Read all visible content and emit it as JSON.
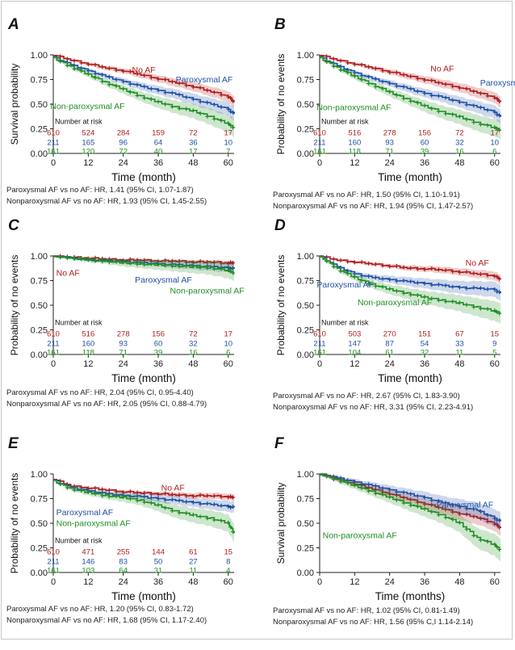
{
  "colors": {
    "noaf": "#b01c1c",
    "parox": "#1f4fa5",
    "nonparox": "#1f8f22",
    "axis": "#222222"
  },
  "chart_data": [
    {
      "panel": "A",
      "type": "line",
      "ylabel": "Survival probability",
      "xlabel": "Time (month)",
      "xlim": [
        0,
        62
      ],
      "ylim": [
        0,
        1
      ],
      "xticks": [
        "0",
        "12",
        "24",
        "36",
        "48",
        "60"
      ],
      "yticks": [
        "0.00",
        "0.25",
        "0.50",
        "0.75",
        "1.00"
      ],
      "series": [
        {
          "name": "No AF",
          "color": "noaf",
          "x": [
            0,
            6,
            12,
            18,
            24,
            30,
            36,
            42,
            48,
            54,
            60,
            62
          ],
          "y": [
            1.0,
            0.95,
            0.91,
            0.87,
            0.84,
            0.8,
            0.76,
            0.72,
            0.68,
            0.63,
            0.58,
            0.52
          ],
          "band": 0.05
        },
        {
          "name": "Paroxysmal AF",
          "color": "parox",
          "x": [
            0,
            6,
            12,
            18,
            24,
            30,
            36,
            42,
            48,
            54,
            60,
            62
          ],
          "y": [
            0.98,
            0.9,
            0.84,
            0.78,
            0.73,
            0.68,
            0.64,
            0.6,
            0.55,
            0.5,
            0.45,
            0.4
          ],
          "band": 0.06
        },
        {
          "name": "Non-paroxysmal AF",
          "color": "nonparox",
          "x": [
            0,
            6,
            12,
            18,
            24,
            30,
            36,
            42,
            48,
            54,
            60,
            62
          ],
          "y": [
            0.97,
            0.88,
            0.8,
            0.72,
            0.65,
            0.58,
            0.52,
            0.47,
            0.43,
            0.37,
            0.3,
            0.26
          ],
          "band": 0.08
        }
      ],
      "labels": [
        {
          "text": "No AF",
          "color": "noaf",
          "x": 27,
          "y": 0.82
        },
        {
          "text": "Paroxysmal AF",
          "color": "parox",
          "x": 42,
          "y": 0.72
        },
        {
          "text": "Non-paroxysmal AF",
          "color": "nonparox",
          "x": -1,
          "y": 0.45
        }
      ],
      "risk": {
        "title": "Number at risk",
        "rows": [
          {
            "color": "noaf",
            "values": [
              "610",
              "524",
              "284",
              "159",
              "72",
              "17"
            ]
          },
          {
            "color": "parox",
            "values": [
              "211",
              "165",
              "96",
              "64",
              "36",
              "10"
            ]
          },
          {
            "color": "nonparox",
            "values": [
              "161",
              "120",
              "72",
              "40",
              "17",
              "7"
            ]
          }
        ]
      },
      "hr": [
        "Paroxysmal AF vs no AF: HR, 1.41 (95% CI, 1.07-1.87)",
        "Nonparoxysmal AF vs no AF: HR, 1.93 (95% CI, 1.45-2.55)"
      ]
    },
    {
      "panel": "B",
      "type": "line",
      "ylabel": "Probability of no events",
      "xlabel": "Time (month)",
      "xlim": [
        0,
        62
      ],
      "ylim": [
        0,
        1
      ],
      "xticks": [
        "0",
        "12",
        "24",
        "36",
        "48",
        "60"
      ],
      "yticks": [
        "0.00",
        "0.25",
        "0.50",
        "0.75",
        "1.00"
      ],
      "series": [
        {
          "name": "No AF",
          "color": "noaf",
          "x": [
            0,
            6,
            12,
            18,
            24,
            30,
            36,
            42,
            48,
            54,
            60,
            62
          ],
          "y": [
            1.0,
            0.95,
            0.91,
            0.87,
            0.83,
            0.79,
            0.75,
            0.71,
            0.67,
            0.62,
            0.57,
            0.52
          ],
          "band": 0.05
        },
        {
          "name": "Paroxysmal AF",
          "color": "parox",
          "x": [
            0,
            6,
            12,
            18,
            24,
            30,
            36,
            42,
            48,
            54,
            60,
            62
          ],
          "y": [
            0.98,
            0.89,
            0.82,
            0.76,
            0.71,
            0.66,
            0.61,
            0.57,
            0.52,
            0.47,
            0.42,
            0.37
          ],
          "band": 0.06
        },
        {
          "name": "Non-paroxysmal AF",
          "color": "nonparox",
          "x": [
            0,
            6,
            12,
            18,
            24,
            30,
            36,
            42,
            48,
            54,
            60,
            62
          ],
          "y": [
            0.97,
            0.87,
            0.78,
            0.7,
            0.62,
            0.55,
            0.48,
            0.42,
            0.37,
            0.31,
            0.26,
            0.24
          ],
          "band": 0.08
        }
      ],
      "labels": [
        {
          "text": "No AF",
          "color": "noaf",
          "x": 38,
          "y": 0.83
        },
        {
          "text": "Paroxysmal AF",
          "color": "parox",
          "x": 55,
          "y": 0.69
        },
        {
          "text": "Non-paroxysmal AF",
          "color": "nonparox",
          "x": -1,
          "y": 0.44
        }
      ],
      "risk": {
        "title": "Number at risk",
        "rows": [
          {
            "color": "noaf",
            "values": [
              "610",
              "516",
              "278",
              "156",
              "72",
              "17"
            ]
          },
          {
            "color": "parox",
            "values": [
              "211",
              "160",
              "93",
              "60",
              "32",
              "10"
            ]
          },
          {
            "color": "nonparox",
            "values": [
              "161",
              "118",
              "71",
              "39",
              "16",
              "6"
            ]
          }
        ]
      },
      "hr": [
        "Paroxysmal AF vs no AF: HR, 1.50 (95% CI, 1.10-1.91)",
        "Nonparoxysmal AF vs no AF: HR, 1.94 (95% CI, 1.47-2.57)"
      ]
    },
    {
      "panel": "C",
      "type": "line",
      "ylabel": "Probability of no events",
      "xlabel": "Time (month)",
      "xlim": [
        0,
        62
      ],
      "ylim": [
        0,
        1
      ],
      "xticks": [
        "0",
        "12",
        "24",
        "36",
        "48",
        "60"
      ],
      "yticks": [
        "0.00",
        "0.25",
        "0.50",
        "0.75",
        "1.00"
      ],
      "series": [
        {
          "name": "No AF",
          "color": "noaf",
          "x": [
            0,
            6,
            12,
            18,
            24,
            30,
            36,
            42,
            48,
            54,
            60,
            62
          ],
          "y": [
            1.0,
            0.99,
            0.98,
            0.97,
            0.96,
            0.96,
            0.95,
            0.95,
            0.94,
            0.94,
            0.93,
            0.93
          ],
          "band": 0.02
        },
        {
          "name": "Paroxysmal AF",
          "color": "parox",
          "x": [
            0,
            6,
            12,
            18,
            24,
            30,
            36,
            42,
            48,
            54,
            60,
            62
          ],
          "y": [
            1.0,
            0.98,
            0.96,
            0.95,
            0.94,
            0.93,
            0.92,
            0.91,
            0.9,
            0.89,
            0.88,
            0.87
          ],
          "band": 0.04
        },
        {
          "name": "Non-paroxysmal AF",
          "color": "nonparox",
          "x": [
            0,
            6,
            12,
            18,
            24,
            30,
            36,
            42,
            48,
            54,
            60,
            62
          ],
          "y": [
            1.0,
            0.98,
            0.96,
            0.95,
            0.93,
            0.92,
            0.91,
            0.9,
            0.89,
            0.88,
            0.85,
            0.83
          ],
          "band": 0.07
        }
      ],
      "labels": [
        {
          "text": "No AF",
          "color": "noaf",
          "x": 1,
          "y": 0.8
        },
        {
          "text": "Paroxysmal AF",
          "color": "parox",
          "x": 28,
          "y": 0.73
        },
        {
          "text": "Non-paroxysmal AF",
          "color": "nonparox",
          "x": 40,
          "y": 0.62
        }
      ],
      "risk": {
        "title": "Number at risk",
        "rows": [
          {
            "color": "noaf",
            "values": [
              "610",
              "516",
              "278",
              "156",
              "72",
              "17"
            ]
          },
          {
            "color": "parox",
            "values": [
              "211",
              "160",
              "93",
              "60",
              "32",
              "10"
            ]
          },
          {
            "color": "nonparox",
            "values": [
              "161",
              "118",
              "71",
              "39",
              "16",
              "6"
            ]
          }
        ]
      },
      "hr": [
        "Paroxysmal AF vs no AF: HR, 2.04 (95% CI, 0.95-4.40)",
        "Nonparoxysmal AF vs no AF: HR, 2.05 (95% CI, 0.88-4.79)"
      ]
    },
    {
      "panel": "D",
      "type": "line",
      "ylabel": "Probability of no events",
      "xlabel": "Time (month)",
      "xlim": [
        0,
        62
      ],
      "ylim": [
        0,
        1
      ],
      "xticks": [
        "0",
        "12",
        "24",
        "36",
        "48",
        "60"
      ],
      "yticks": [
        "0.00",
        "0.25",
        "0.50",
        "0.75",
        "1.00"
      ],
      "series": [
        {
          "name": "No AF",
          "color": "noaf",
          "x": [
            0,
            6,
            12,
            18,
            24,
            30,
            36,
            42,
            48,
            54,
            60,
            62
          ],
          "y": [
            1.0,
            0.96,
            0.94,
            0.92,
            0.9,
            0.88,
            0.87,
            0.86,
            0.84,
            0.82,
            0.8,
            0.76
          ],
          "band": 0.04
        },
        {
          "name": "Paroxysmal AF",
          "color": "parox",
          "x": [
            0,
            6,
            12,
            18,
            24,
            30,
            36,
            42,
            48,
            54,
            60,
            62
          ],
          "y": [
            1.0,
            0.89,
            0.82,
            0.78,
            0.76,
            0.74,
            0.72,
            0.7,
            0.68,
            0.67,
            0.66,
            0.62
          ],
          "band": 0.07
        },
        {
          "name": "Non-paroxysmal AF",
          "color": "nonparox",
          "x": [
            0,
            6,
            12,
            18,
            24,
            30,
            36,
            42,
            48,
            54,
            60,
            62
          ],
          "y": [
            1.0,
            0.87,
            0.78,
            0.71,
            0.66,
            0.62,
            0.58,
            0.55,
            0.52,
            0.48,
            0.44,
            0.42
          ],
          "band": 0.09
        }
      ],
      "labels": [
        {
          "text": "No AF",
          "color": "noaf",
          "x": 50,
          "y": 0.9
        },
        {
          "text": "Paroxysmal AF",
          "color": "parox",
          "x": -1,
          "y": 0.68
        },
        {
          "text": "Non-paroxysmal AF",
          "color": "nonparox",
          "x": 13,
          "y": 0.5
        }
      ],
      "risk": {
        "title": "Number at risk",
        "rows": [
          {
            "color": "noaf",
            "values": [
              "610",
              "503",
              "270",
              "151",
              "67",
              "15"
            ]
          },
          {
            "color": "parox",
            "values": [
              "211",
              "147",
              "87",
              "54",
              "33",
              "9"
            ]
          },
          {
            "color": "nonparox",
            "values": [
              "161",
              "104",
              "61",
              "32",
              "11",
              "5"
            ]
          }
        ]
      },
      "hr": [
        "Paroxysmal AF vs no AF: HR, 2.67 (95% CI, 1.83-3.90)",
        "Nonparoxysmal AF vs no AF: HR, 3.31 (95% CI, 2.23-4.91)"
      ]
    },
    {
      "panel": "E",
      "type": "line",
      "ylabel": "Probability of no events",
      "xlabel": "Time (month)",
      "xlim": [
        0,
        62
      ],
      "ylim": [
        0,
        1
      ],
      "xticks": [
        "0",
        "12",
        "24",
        "36",
        "48",
        "60"
      ],
      "yticks": [
        "0.00",
        "0.25",
        "0.50",
        "0.75",
        "1.00"
      ],
      "series": [
        {
          "name": "No AF",
          "color": "noaf",
          "x": [
            0,
            6,
            12,
            18,
            24,
            30,
            36,
            42,
            48,
            54,
            60,
            62
          ],
          "y": [
            0.95,
            0.88,
            0.86,
            0.84,
            0.82,
            0.81,
            0.8,
            0.79,
            0.78,
            0.78,
            0.77,
            0.76
          ],
          "band": 0.03
        },
        {
          "name": "Paroxysmal AF",
          "color": "parox",
          "x": [
            0,
            6,
            12,
            18,
            24,
            30,
            36,
            42,
            48,
            54,
            60,
            62
          ],
          "y": [
            0.94,
            0.86,
            0.83,
            0.8,
            0.78,
            0.77,
            0.75,
            0.73,
            0.71,
            0.69,
            0.67,
            0.66
          ],
          "band": 0.05
        },
        {
          "name": "Non-paroxysmal AF",
          "color": "nonparox",
          "x": [
            0,
            6,
            12,
            18,
            24,
            30,
            36,
            42,
            48,
            54,
            60,
            62
          ],
          "y": [
            0.93,
            0.85,
            0.81,
            0.78,
            0.76,
            0.73,
            0.68,
            0.62,
            0.58,
            0.55,
            0.5,
            0.4
          ],
          "band": 0.08
        }
      ],
      "labels": [
        {
          "text": "No AF",
          "color": "noaf",
          "x": 37,
          "y": 0.83
        },
        {
          "text": "Paroxysmal AF",
          "color": "parox",
          "x": 1,
          "y": 0.58
        },
        {
          "text": "Non-paroxysmal AF",
          "color": "nonparox",
          "x": 1,
          "y": 0.47
        }
      ],
      "risk": {
        "title": "Number at risk",
        "rows": [
          {
            "color": "noaf",
            "values": [
              "610",
              "471",
              "255",
              "144",
              "61",
              "15"
            ]
          },
          {
            "color": "parox",
            "values": [
              "211",
              "146",
              "83",
              "50",
              "27",
              "8"
            ]
          },
          {
            "color": "nonparox",
            "values": [
              "161",
              "103",
              "64",
              "31",
              "11",
              "4"
            ]
          }
        ]
      },
      "hr": [
        "Paroxysmal AF vs no AF: HR, 1.20 (95% CI, 0.83-1.72)",
        "Nonparoxysmal AF vs no AF: HR, 1.68 (95% CI, 1.17-2.40)"
      ]
    },
    {
      "panel": "F",
      "type": "line",
      "ylabel": "Survival probability",
      "xlabel": "Time (months)",
      "xlim": [
        0,
        62
      ],
      "ylim": [
        0,
        1
      ],
      "xticks": [
        "0",
        "12",
        "24",
        "36",
        "48",
        "60"
      ],
      "yticks": [
        "0.00",
        "0.25",
        "0.50",
        "0.75",
        "1.00"
      ],
      "series": [
        {
          "name": "No AF",
          "color": "noaf",
          "x": [
            0,
            6,
            12,
            18,
            24,
            30,
            36,
            42,
            48,
            54,
            60,
            62
          ],
          "y": [
            1.0,
            0.95,
            0.9,
            0.85,
            0.8,
            0.75,
            0.7,
            0.65,
            0.6,
            0.56,
            0.5,
            0.45
          ],
          "band": 0.07
        },
        {
          "name": "Paroxysmal AF",
          "color": "parox",
          "x": [
            0,
            6,
            12,
            18,
            24,
            30,
            36,
            42,
            48,
            54,
            60,
            62
          ],
          "y": [
            1.0,
            0.96,
            0.92,
            0.88,
            0.84,
            0.8,
            0.76,
            0.71,
            0.67,
            0.63,
            0.55,
            0.52
          ],
          "band": 0.08
        },
        {
          "name": "Non-paroxysmal AF",
          "color": "nonparox",
          "x": [
            0,
            6,
            12,
            18,
            24,
            30,
            36,
            42,
            48,
            54,
            60,
            62
          ],
          "y": [
            1.0,
            0.94,
            0.88,
            0.82,
            0.76,
            0.7,
            0.64,
            0.58,
            0.5,
            0.35,
            0.28,
            0.23
          ],
          "band": 0.1
        }
      ],
      "labels": [
        {
          "text": "Paroxysmal AF",
          "color": "parox",
          "x": 40,
          "y": 0.66
        },
        {
          "text": "Non-paroxysmal AF",
          "color": "nonparox",
          "x": 1,
          "y": 0.35
        }
      ],
      "risk": null,
      "hr": [
        "Paroxysmal AF vs no AF: HR, 1.02 (95% CI, 0.81-1.49)",
        "Nonparoxysmal AF vs no AF: HR, 1.56 (95% C,I 1.14-2.14)"
      ]
    }
  ]
}
